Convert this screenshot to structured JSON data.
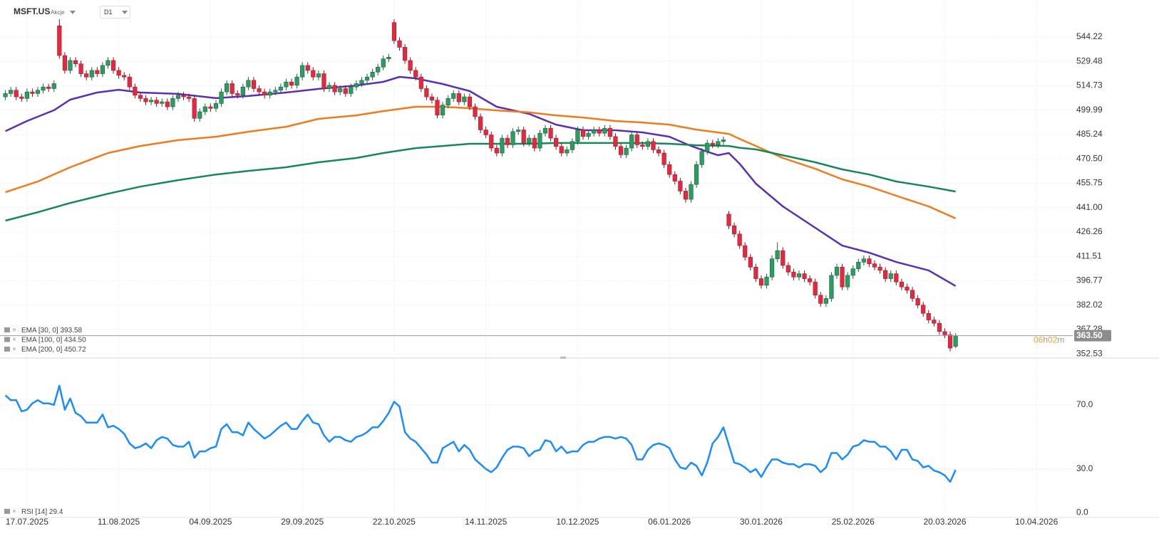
{
  "header": {
    "symbol": "MSFT.US",
    "category": "Akcje",
    "interval": "D1"
  },
  "chart_data": [
    {
      "type": "candlestick",
      "xlim": [
        -1,
        197.7
      ],
      "ylim": [
        350,
        566.6
      ],
      "grid": true,
      "up_color": "#2a9d62",
      "down_color": "#e3293f",
      "yticks": [
        352.53,
        367.28,
        382.02,
        396.77,
        411.51,
        426.26,
        {
          "value": 441,
          "label": "441.00"
        },
        455.75,
        {
          "value": 470.5,
          "label": "470.50"
        },
        485.24,
        499.99,
        514.73,
        529.48,
        544.22
      ],
      "xticks": [
        {
          "value": 4,
          "label": "17.07.2025"
        },
        {
          "value": 21,
          "label": "11.08.2025"
        },
        {
          "value": 38,
          "label": "04.09.2025"
        },
        {
          "value": 55,
          "label": "29.09.2025"
        },
        {
          "value": 72,
          "label": "22.10.2025"
        },
        {
          "value": 89,
          "label": "14.11.2025"
        },
        {
          "value": 106,
          "label": "10.12.2025"
        },
        {
          "value": 123,
          "label": "06.01.2026"
        },
        {
          "value": 140,
          "label": "30.01.2026"
        },
        {
          "value": 157,
          "label": "25.02.2026"
        },
        {
          "value": 174,
          "label": "20.03.2026"
        },
        {
          "value": 191,
          "label": "10.04.2026"
        }
      ],
      "open": [
        508,
        510,
        512,
        508,
        507,
        511,
        510,
        512,
        514,
        513,
        551,
        533,
        524,
        530,
        528,
        522,
        520,
        524,
        522,
        527,
        530,
        524,
        521,
        520,
        514,
        509,
        507,
        505,
        506,
        504,
        505,
        502,
        507,
        509,
        508,
        507,
        495,
        499,
        502,
        501,
        504,
        511,
        516,
        510,
        509,
        514,
        518,
        513,
        511,
        509,
        511,
        512,
        514,
        517,
        515,
        520,
        527,
        524,
        520,
        522,
        513,
        515,
        511,
        513,
        510,
        514,
        516,
        518,
        520,
        523,
        526,
        531,
        553,
        542,
        538,
        530,
        524,
        520,
        513,
        508,
        506,
        497,
        503,
        507,
        510,
        505,
        508,
        502,
        496,
        488,
        485,
        477,
        474,
        483,
        479,
        487,
        488,
        480,
        483,
        477,
        486,
        489,
        483,
        478,
        474,
        476,
        481,
        488,
        484,
        486,
        488,
        486,
        489,
        484,
        478,
        473,
        477,
        485,
        479,
        478,
        481,
        476,
        474,
        467,
        461,
        457,
        451,
        446,
        455,
        467,
        475,
        480,
        479,
        481,
        437,
        430,
        425,
        418,
        411,
        405,
        398,
        394,
        399,
        410,
        415,
        406,
        402,
        399,
        401,
        398,
        396,
        388,
        383,
        386,
        400,
        405,
        393,
        400,
        404,
        408,
        410,
        407,
        405,
        403,
        398,
        401,
        396,
        393,
        391,
        386,
        382,
        377,
        373,
        371,
        366,
        364,
        357
      ],
      "high": [
        512,
        514,
        514,
        510,
        513,
        513,
        514,
        516,
        516,
        518,
        555,
        535,
        532,
        532,
        530,
        524,
        526,
        526,
        529,
        532,
        532,
        526,
        523,
        522,
        516,
        511,
        509,
        508,
        508,
        507,
        507,
        509,
        511,
        511,
        510,
        509,
        501,
        504,
        504,
        506,
        513,
        518,
        518,
        512,
        516,
        520,
        520,
        515,
        513,
        513,
        514,
        516,
        519,
        519,
        522,
        529,
        529,
        526,
        524,
        524,
        517,
        517,
        515,
        515,
        516,
        518,
        520,
        522,
        525,
        528,
        533,
        534,
        555,
        544,
        540,
        532,
        526,
        522,
        515,
        510,
        508,
        505,
        509,
        512,
        512,
        510,
        510,
        504,
        498,
        490,
        487,
        479,
        485,
        485,
        489,
        490,
        490,
        485,
        485,
        488,
        491,
        491,
        485,
        480,
        478,
        483,
        490,
        490,
        488,
        490,
        490,
        491,
        491,
        486,
        480,
        479,
        487,
        487,
        481,
        483,
        483,
        478,
        476,
        469,
        463,
        459,
        453,
        457,
        469,
        477,
        482,
        482,
        483,
        484,
        439,
        432,
        427,
        420,
        413,
        407,
        400,
        401,
        412,
        420,
        417,
        408,
        404,
        403,
        403,
        400,
        398,
        390,
        388,
        402,
        407,
        407,
        402,
        406,
        410,
        412,
        412,
        409,
        407,
        405,
        403,
        403,
        398,
        395,
        393,
        388,
        384,
        379,
        375,
        373,
        368,
        366,
        365
      ],
      "low": [
        506,
        508,
        506,
        505,
        505,
        508,
        508,
        510,
        511,
        511,
        531,
        522,
        522,
        526,
        520,
        518,
        518,
        520,
        520,
        525,
        522,
        519,
        518,
        512,
        507,
        505,
        503,
        503,
        502,
        502,
        500,
        500,
        505,
        506,
        505,
        493,
        493,
        497,
        499,
        499,
        502,
        509,
        508,
        507,
        507,
        512,
        511,
        509,
        507,
        507,
        509,
        510,
        512,
        513,
        513,
        518,
        522,
        518,
        518,
        511,
        511,
        509,
        509,
        508,
        508,
        512,
        514,
        516,
        518,
        521,
        524,
        529,
        540,
        536,
        528,
        522,
        518,
        511,
        506,
        504,
        495,
        495,
        501,
        505,
        503,
        503,
        500,
        494,
        486,
        483,
        475,
        472,
        472,
        477,
        477,
        485,
        478,
        478,
        475,
        475,
        484,
        481,
        476,
        472,
        472,
        474,
        479,
        482,
        482,
        484,
        484,
        484,
        482,
        476,
        471,
        471,
        475,
        477,
        476,
        476,
        474,
        472,
        465,
        459,
        455,
        449,
        444,
        444,
        453,
        465,
        473,
        477,
        477,
        479,
        428,
        423,
        416,
        409,
        403,
        396,
        392,
        392,
        397,
        408,
        404,
        400,
        397,
        397,
        396,
        394,
        386,
        381,
        381,
        384,
        398,
        391,
        391,
        398,
        402,
        406,
        405,
        403,
        401,
        396,
        396,
        394,
        391,
        389,
        384,
        380,
        375,
        371,
        369,
        364,
        362,
        354,
        356
      ],
      "close": [
        510,
        512,
        508,
        507,
        511,
        510,
        512,
        514,
        513,
        516,
        533,
        524,
        530,
        528,
        522,
        520,
        524,
        522,
        527,
        530,
        524,
        521,
        520,
        514,
        509,
        507,
        505,
        506,
        504,
        505,
        502,
        507,
        509,
        508,
        507,
        495,
        499,
        502,
        501,
        504,
        511,
        516,
        510,
        509,
        514,
        518,
        513,
        511,
        509,
        511,
        512,
        514,
        517,
        515,
        520,
        527,
        524,
        520,
        522,
        513,
        515,
        511,
        513,
        510,
        514,
        516,
        518,
        520,
        523,
        526,
        531,
        532,
        542,
        538,
        530,
        524,
        520,
        513,
        508,
        506,
        497,
        503,
        507,
        510,
        505,
        508,
        502,
        496,
        488,
        485,
        477,
        474,
        483,
        479,
        487,
        488,
        480,
        483,
        477,
        486,
        489,
        483,
        478,
        474,
        476,
        481,
        488,
        484,
        486,
        488,
        486,
        489,
        484,
        478,
        473,
        477,
        485,
        479,
        478,
        481,
        476,
        474,
        467,
        461,
        457,
        451,
        446,
        455,
        467,
        475,
        480,
        479,
        481,
        482,
        430,
        425,
        418,
        411,
        405,
        398,
        394,
        399,
        410,
        415,
        406,
        402,
        399,
        401,
        398,
        396,
        388,
        383,
        386,
        400,
        405,
        393,
        400,
        404,
        408,
        410,
        407,
        405,
        403,
        398,
        401,
        396,
        393,
        391,
        386,
        382,
        377,
        373,
        371,
        366,
        364,
        356,
        363.5
      ],
      "last_price_label": "363.50",
      "countdown": [
        "06",
        "h",
        "02",
        "m"
      ],
      "series": [
        {
          "name": "EMA [30, 0]",
          "last_value_label": "393.58",
          "color": "#5b2fb3",
          "x": [
            0,
            4,
            9,
            12,
            17,
            21,
            25,
            32,
            39,
            45,
            52,
            58,
            65,
            70,
            73,
            76,
            81,
            86,
            91,
            97,
            102,
            107,
            113,
            118,
            123,
            127,
            130,
            132,
            134,
            136,
            139,
            144,
            150,
            155,
            160,
            165,
            171,
            176
          ],
          "values": [
            487.3,
            493.4,
            499.9,
            506.3,
            510.6,
            512.3,
            510.6,
            509.8,
            507.2,
            508.5,
            510.6,
            512.8,
            514.9,
            517.1,
            520.1,
            519.2,
            515.8,
            511.5,
            502,
            497.7,
            491.2,
            487.8,
            487.8,
            486.5,
            483.9,
            478.3,
            474.8,
            472.7,
            474,
            467.5,
            455.5,
            441.7,
            428.8,
            418,
            413.7,
            408.1,
            403,
            393.58
          ]
        },
        {
          "name": "EMA [100, 0]",
          "last_value_label": "434.50",
          "color": "#f07b1c",
          "x": [
            0,
            6,
            12,
            19,
            25,
            32,
            39,
            45,
            52,
            58,
            65,
            70,
            76,
            81,
            86,
            91,
            97,
            102,
            107,
            113,
            118,
            123,
            128,
            134,
            136,
            139,
            144,
            150,
            155,
            160,
            165,
            171,
            176
          ],
          "values": [
            450.3,
            456.8,
            465.4,
            474,
            478.3,
            481.8,
            483.9,
            486.9,
            489.9,
            494.7,
            496.8,
            499.4,
            502,
            502,
            501.1,
            499.8,
            498.6,
            496.8,
            495.5,
            493.4,
            492.5,
            491.2,
            488.2,
            485.6,
            482.6,
            478.3,
            471,
            464.5,
            458.1,
            453.7,
            448.2,
            441.7,
            434.5
          ]
        },
        {
          "name": "EMA [200, 0]",
          "last_value_label": "450.72",
          "color": "#14885a",
          "x": [
            0,
            6,
            12,
            19,
            25,
            32,
            39,
            45,
            52,
            58,
            65,
            70,
            76,
            81,
            86,
            91,
            97,
            102,
            107,
            113,
            118,
            123,
            128,
            134,
            136,
            139,
            144,
            150,
            155,
            160,
            165,
            171,
            176
          ],
          "values": [
            433.1,
            438.2,
            443.8,
            449.4,
            453.7,
            457.6,
            461,
            463.2,
            465.4,
            468.4,
            471,
            474,
            477,
            478.3,
            479.6,
            479.6,
            479.6,
            480.1,
            480.1,
            480.1,
            480.1,
            479.6,
            478.7,
            478.3,
            477.2,
            476.2,
            472.7,
            468.4,
            464.1,
            461,
            456.8,
            453.7,
            450.72
          ]
        }
      ]
    },
    {
      "type": "line",
      "xlim": [
        -1,
        197.7
      ],
      "ylim": [
        0,
        98.4
      ],
      "grid": true,
      "yticks": [
        {
          "value": 70,
          "label": "70.0"
        },
        {
          "value": 30,
          "label": "30.0"
        },
        {
          "value": 0,
          "label": "0.0"
        }
      ],
      "series": [
        {
          "name": "RSI [14]",
          "color": "#1a8cff",
          "values": [
            76,
            73,
            73,
            66,
            67,
            71,
            73,
            71,
            71,
            70,
            82,
            67,
            74,
            65,
            63,
            59,
            59,
            59,
            64,
            56,
            57,
            55,
            52,
            46,
            43,
            44,
            46,
            43,
            48,
            50,
            49,
            45,
            44,
            44,
            47,
            37,
            41,
            41,
            43,
            44,
            55,
            58,
            53,
            53,
            51,
            59,
            55,
            52,
            49,
            51,
            54,
            57,
            59,
            55,
            55,
            60,
            64,
            59,
            58,
            51,
            47,
            50,
            50,
            48,
            47,
            50,
            51,
            53,
            56,
            56,
            60,
            65,
            72,
            69,
            53,
            49,
            47,
            43,
            39,
            34,
            34,
            43,
            45,
            47,
            41,
            45,
            42,
            36,
            33,
            30,
            28,
            31,
            37,
            42,
            44,
            44,
            43,
            38,
            41,
            42,
            48,
            47,
            41,
            44,
            40,
            41,
            41,
            45,
            47,
            47,
            49,
            50,
            50,
            49,
            50,
            49,
            45,
            36,
            36,
            42,
            45,
            46,
            45,
            43,
            36,
            31,
            30,
            34,
            32,
            26,
            34,
            46,
            50,
            56,
            45,
            34,
            33,
            31,
            28,
            30,
            25,
            31,
            36,
            36,
            34,
            33,
            33,
            31,
            33,
            33,
            32,
            28,
            31,
            40,
            40,
            36,
            39,
            44,
            45,
            48,
            47,
            47,
            44,
            44,
            41,
            36,
            42,
            42,
            36,
            35,
            31,
            32,
            29,
            28,
            26,
            22,
            29.4
          ]
        }
      ]
    }
  ]
}
